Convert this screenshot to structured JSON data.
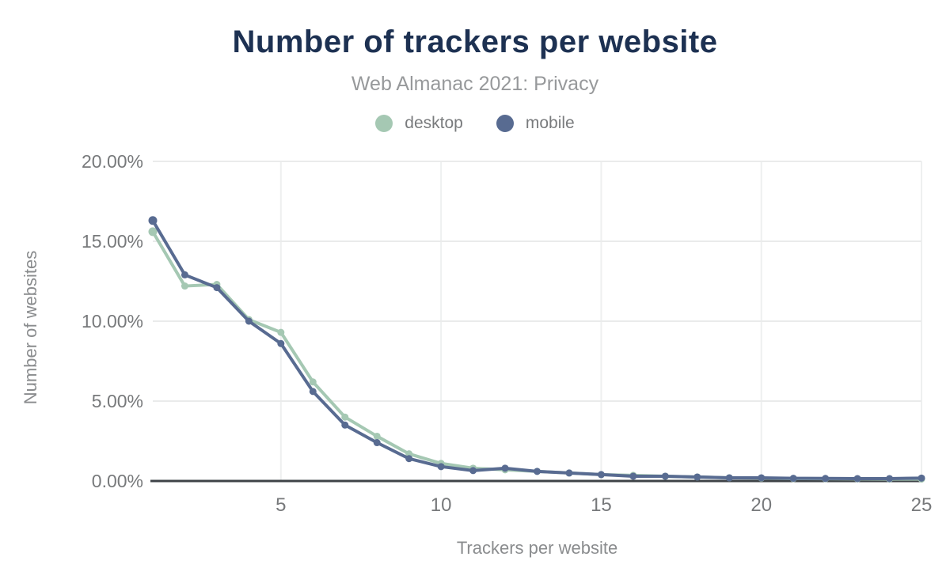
{
  "header": {
    "title": "Number of trackers per website",
    "subtitle": "Web Almanac 2021: Privacy"
  },
  "legend": [
    {
      "label": "desktop",
      "color": "#a5c8b3"
    },
    {
      "label": "mobile",
      "color": "#586b91"
    }
  ],
  "chart_data": {
    "type": "line",
    "title": "Number of trackers per website",
    "subtitle": "Web Almanac 2021: Privacy",
    "xlabel": "Trackers per website",
    "ylabel": "Number of websites",
    "x": [
      1,
      2,
      3,
      4,
      5,
      6,
      7,
      8,
      9,
      10,
      11,
      12,
      13,
      14,
      15,
      16,
      17,
      18,
      19,
      20,
      21,
      22,
      23,
      24,
      25
    ],
    "series": [
      {
        "name": "desktop",
        "color": "#a5c8b3",
        "values": [
          15.6,
          12.2,
          12.3,
          10.1,
          9.3,
          6.2,
          4.0,
          2.8,
          1.7,
          1.1,
          0.8,
          0.7,
          0.6,
          0.5,
          0.4,
          0.35,
          0.3,
          0.25,
          0.2,
          0.18,
          0.15,
          0.14,
          0.13,
          0.12,
          0.12
        ]
      },
      {
        "name": "mobile",
        "color": "#586b91",
        "values": [
          16.3,
          12.9,
          12.1,
          10.0,
          8.6,
          5.6,
          3.5,
          2.4,
          1.4,
          0.9,
          0.65,
          0.8,
          0.6,
          0.5,
          0.4,
          0.3,
          0.3,
          0.25,
          0.2,
          0.2,
          0.17,
          0.16,
          0.15,
          0.15,
          0.18
        ]
      }
    ],
    "xticks": [
      5,
      10,
      15,
      20,
      25
    ],
    "yticks": [
      [
        0,
        "0.00%"
      ],
      [
        5,
        "5.00%"
      ],
      [
        10,
        "10.00%"
      ],
      [
        15,
        "15.00%"
      ],
      [
        20,
        "20.00%"
      ]
    ],
    "xlim": [
      1,
      25
    ],
    "ylim": [
      0,
      20
    ],
    "grid": true,
    "legend_position": "top",
    "colors": {
      "grid_horizontal": "#eaebeb",
      "grid_vertical": "#eef0f0",
      "axis_line": "#3e4347"
    }
  }
}
